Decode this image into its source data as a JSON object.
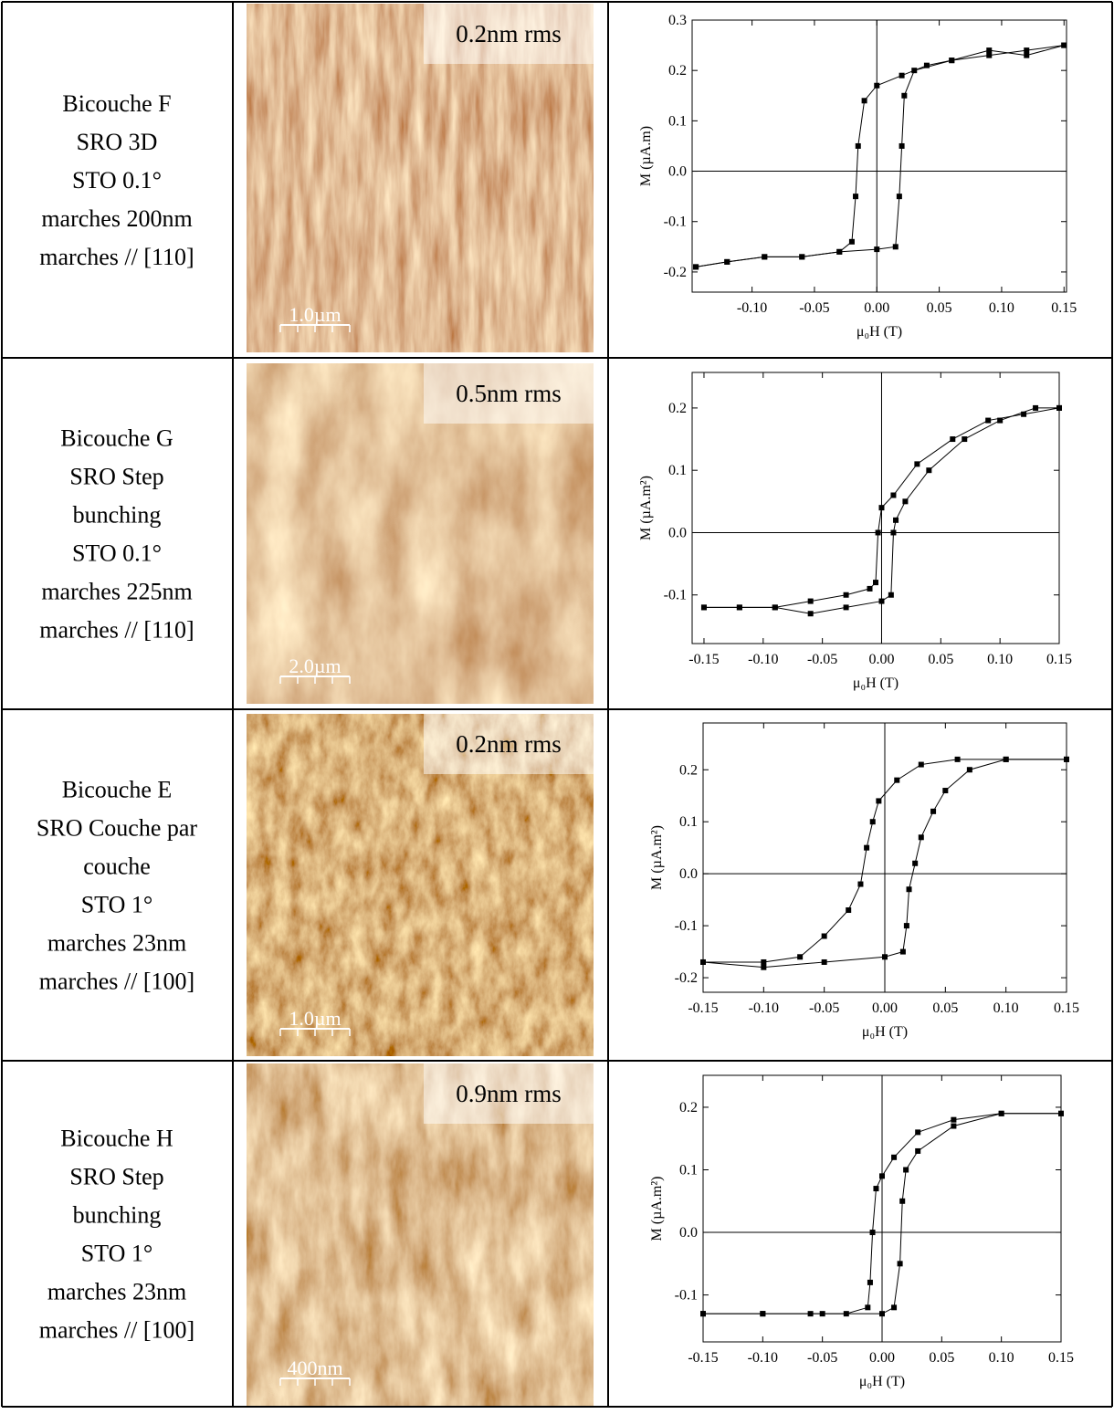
{
  "table": {
    "rows": [
      {
        "lines": [
          "Bicouche F",
          "SRO 3D",
          "STO 0.1°",
          "marches 200nm",
          "marches // [110]"
        ],
        "rms": "0.2nm rms",
        "scale": "1.0µm"
      },
      {
        "lines": [
          "Bicouche G",
          "SRO Step",
          "bunching",
          "STO 0.1°",
          "marches 225nm",
          "marches // [110]"
        ],
        "rms": "0.5nm rms",
        "scale": "2.0µm"
      },
      {
        "lines": [
          "Bicouche E",
          "SRO Couche par",
          "couche",
          "STO 1°",
          "marches 23nm",
          "marches // [100]"
        ],
        "rms": "0.2nm rms",
        "scale": "1.0µm"
      },
      {
        "lines": [
          "Bicouche H",
          "SRO Step",
          "bunching",
          "STO 1°",
          "marches 23nm",
          "marches // [100]"
        ],
        "rms": "0.9nm rms",
        "scale": "400nm"
      }
    ]
  },
  "chart_data": [
    {
      "type": "scatter",
      "xlabel": "μ₀H (T)",
      "ylabel": "M (µA.m)",
      "xlim": [
        -0.148,
        0.152
      ],
      "ylim": [
        -0.24,
        0.3
      ],
      "xticks": [
        {
          "value": -0.1,
          "label": "-0.10"
        },
        {
          "value": -0.05,
          "label": "-0.05"
        },
        {
          "value": 0,
          "label": "0.00"
        },
        {
          "value": 0.05,
          "label": "0.05"
        },
        {
          "value": 0.1,
          "label": "0.10"
        },
        {
          "value": 0.15,
          "label": "0.15"
        }
      ],
      "yticks": [
        -0.2,
        -0.1,
        {
          "value": 0,
          "label": "0.0"
        },
        0.1,
        0.2,
        0.3
      ],
      "series": [
        {
          "color": "#000000",
          "x": [
            0.15,
            0.12,
            0.09,
            0.06,
            0.04,
            0.02,
            0.0,
            -0.01,
            -0.015,
            -0.017,
            -0.02,
            -0.03,
            -0.06,
            -0.09,
            -0.12,
            -0.145
          ],
          "values": [
            0.25,
            0.23,
            0.24,
            0.22,
            0.21,
            0.19,
            0.17,
            0.14,
            0.05,
            -0.05,
            -0.14,
            -0.16,
            -0.17,
            -0.17,
            -0.18,
            -0.19
          ]
        },
        {
          "color": "#000000",
          "x": [
            -0.145,
            -0.12,
            -0.09,
            -0.06,
            -0.03,
            0.0,
            0.015,
            0.018,
            0.02,
            0.022,
            0.03,
            0.06,
            0.09,
            0.12,
            0.15
          ],
          "values": [
            -0.19,
            -0.18,
            -0.17,
            -0.17,
            -0.16,
            -0.155,
            -0.15,
            -0.05,
            0.05,
            0.15,
            0.2,
            0.22,
            0.23,
            0.24,
            0.25
          ]
        }
      ]
    },
    {
      "type": "scatter",
      "xlabel": "μ₀H (T)",
      "ylabel": "M (µA.m²)",
      "xlim": [
        -0.16,
        0.15
      ],
      "ylim": [
        -0.178,
        0.257
      ],
      "xticks": [
        {
          "value": -0.15,
          "label": "-0.15"
        },
        {
          "value": -0.1,
          "label": "-0.10"
        },
        {
          "value": -0.05,
          "label": "-0.05"
        },
        {
          "value": 0,
          "label": "0.00"
        },
        {
          "value": 0.05,
          "label": "0.05"
        },
        {
          "value": 0.1,
          "label": "0.10"
        },
        {
          "value": 0.15,
          "label": "0.15"
        }
      ],
      "yticks": [
        -0.1,
        {
          "value": 0,
          "label": "0.0"
        },
        0.1,
        0.2
      ],
      "series": [
        {
          "color": "#000000",
          "x": [
            0.15,
            0.12,
            0.09,
            0.06,
            0.03,
            0.01,
            0.0,
            -0.003,
            -0.005,
            -0.01,
            -0.03,
            -0.06,
            -0.09,
            -0.12,
            -0.15
          ],
          "values": [
            0.2,
            0.19,
            0.18,
            0.15,
            0.11,
            0.06,
            0.04,
            0.0,
            -0.08,
            -0.09,
            -0.1,
            -0.11,
            -0.12,
            -0.12,
            -0.12
          ]
        },
        {
          "color": "#000000",
          "x": [
            -0.15,
            -0.12,
            -0.09,
            -0.06,
            -0.03,
            0.0,
            0.008,
            0.01,
            0.012,
            0.02,
            0.04,
            0.07,
            0.1,
            0.13,
            0.15
          ],
          "values": [
            -0.12,
            -0.12,
            -0.12,
            -0.13,
            -0.12,
            -0.11,
            -0.1,
            0.0,
            0.02,
            0.05,
            0.1,
            0.15,
            0.18,
            0.2,
            0.2
          ]
        }
      ]
    },
    {
      "type": "scatter",
      "xlabel": "μ₀H (T)",
      "ylabel": "M (µA.m²)",
      "xlim": [
        -0.15,
        0.15
      ],
      "ylim": [
        -0.228,
        0.29
      ],
      "xticks": [
        {
          "value": -0.15,
          "label": "-0.15"
        },
        {
          "value": -0.1,
          "label": "-0.10"
        },
        {
          "value": -0.05,
          "label": "-0.05"
        },
        {
          "value": 0,
          "label": "0.00"
        },
        {
          "value": 0.05,
          "label": "0.05"
        },
        {
          "value": 0.1,
          "label": "0.10"
        },
        {
          "value": 0.15,
          "label": "0.15"
        }
      ],
      "yticks": [
        -0.2,
        -0.1,
        {
          "value": 0,
          "label": "0.0"
        },
        0.1,
        0.2
      ],
      "series": [
        {
          "color": "#000000",
          "x": [
            0.15,
            0.1,
            0.06,
            0.03,
            0.01,
            -0.005,
            -0.01,
            -0.015,
            -0.02,
            -0.03,
            -0.05,
            -0.07,
            -0.1,
            -0.15
          ],
          "values": [
            0.22,
            0.22,
            0.22,
            0.21,
            0.18,
            0.14,
            0.1,
            0.05,
            -0.02,
            -0.07,
            -0.12,
            -0.16,
            -0.17,
            -0.17
          ]
        },
        {
          "color": "#000000",
          "x": [
            -0.15,
            -0.1,
            -0.05,
            0.0,
            0.015,
            0.018,
            0.02,
            0.025,
            0.03,
            0.04,
            0.05,
            0.07,
            0.1,
            0.15
          ],
          "values": [
            -0.17,
            -0.18,
            -0.17,
            -0.16,
            -0.15,
            -0.1,
            -0.03,
            0.02,
            0.07,
            0.12,
            0.16,
            0.2,
            0.22,
            0.22
          ]
        }
      ]
    },
    {
      "type": "scatter",
      "xlabel": "μ₀H (T)",
      "ylabel": "M (µA.m²)",
      "xlim": [
        -0.15,
        0.15
      ],
      "ylim": [
        -0.175,
        0.251
      ],
      "xticks": [
        {
          "value": -0.15,
          "label": "-0.15"
        },
        {
          "value": -0.1,
          "label": "-0.10"
        },
        {
          "value": -0.05,
          "label": "-0.05"
        },
        {
          "value": 0,
          "label": "0.00"
        },
        {
          "value": 0.05,
          "label": "0.05"
        },
        {
          "value": 0.1,
          "label": "0.10"
        },
        {
          "value": 0.15,
          "label": "0.15"
        }
      ],
      "yticks": [
        -0.1,
        {
          "value": 0,
          "label": "0.0"
        },
        0.1,
        0.2
      ],
      "series": [
        {
          "color": "#000000",
          "x": [
            0.15,
            0.1,
            0.06,
            0.03,
            0.01,
            0.0,
            -0.005,
            -0.008,
            -0.01,
            -0.012,
            -0.03,
            -0.06,
            -0.1,
            -0.15
          ],
          "values": [
            0.19,
            0.19,
            0.18,
            0.16,
            0.12,
            0.09,
            0.07,
            0.0,
            -0.08,
            -0.12,
            -0.13,
            -0.13,
            -0.13,
            -0.13
          ]
        },
        {
          "color": "#000000",
          "x": [
            -0.15,
            -0.1,
            -0.05,
            0.0,
            0.01,
            0.015,
            0.017,
            0.02,
            0.03,
            0.06,
            0.1,
            0.15
          ],
          "values": [
            -0.13,
            -0.13,
            -0.13,
            -0.13,
            -0.12,
            -0.05,
            0.05,
            0.1,
            0.13,
            0.17,
            0.19,
            0.19
          ]
        }
      ]
    }
  ]
}
